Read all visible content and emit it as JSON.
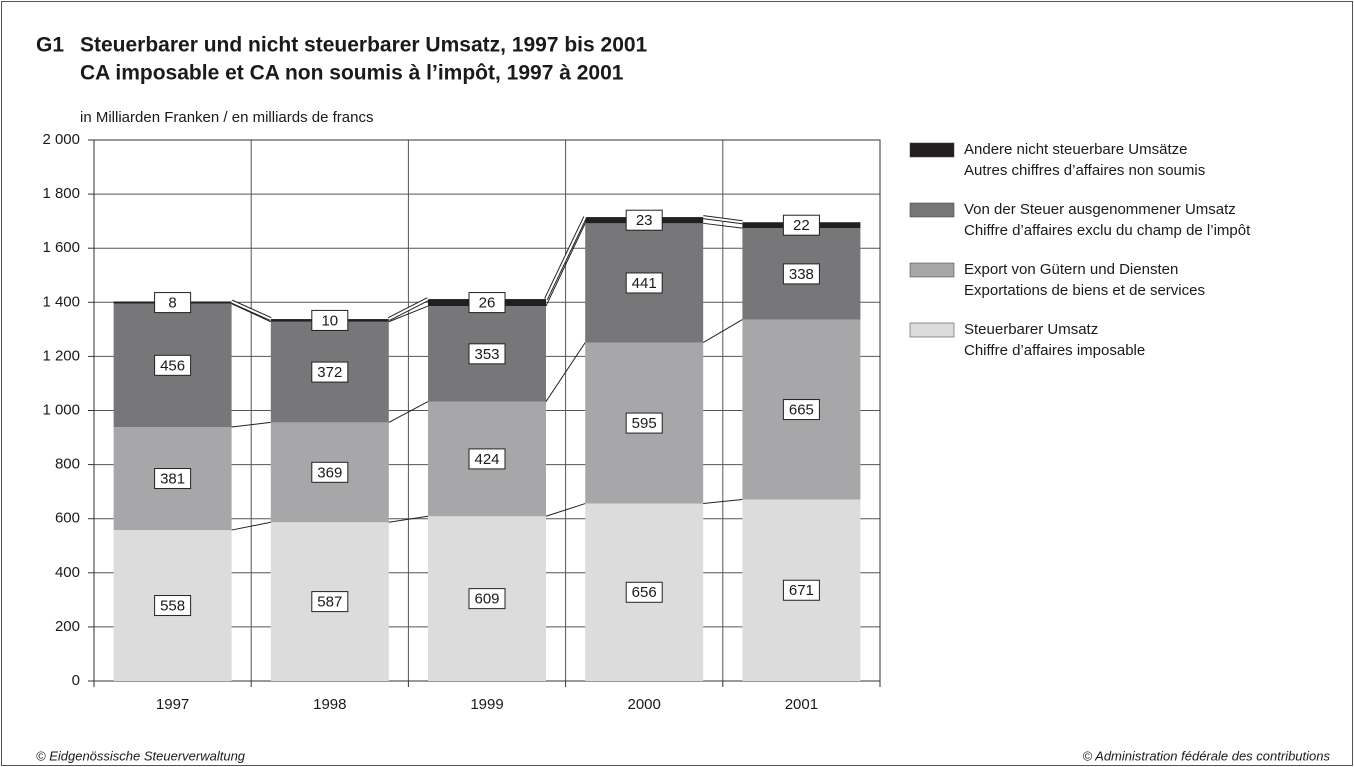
{
  "chart_data": {
    "type": "stacked_bar",
    "chart_id": "G1",
    "title": "Steuerbarer und nicht steuerbarer Umsatz, 1997 bis 2001",
    "title_fr": "CA imposable et CA non soumis à l’impôt, 1997 à 2001",
    "y_label": "in Milliarden Franken / en milliards de francs",
    "categories": [
      "1997",
      "1998",
      "1999",
      "2000",
      "2001"
    ],
    "series": [
      {
        "name": "Steuerbarer Umsatz",
        "name_fr": "Chiffre d’affaires imposable",
        "color": "#dcdcdd",
        "values": [
          558,
          587,
          609,
          656,
          671
        ]
      },
      {
        "name": "Export von Gütern und Diensten",
        "name_fr": "Exportations de biens et de services",
        "color": "#a7a7a9",
        "values": [
          381,
          369,
          424,
          595,
          665
        ]
      },
      {
        "name": "Von der Steuer ausgenommener Umsatz",
        "name_fr": "Chiffre d’affaires exclu du champ de l’impôt",
        "color": "#77777a",
        "values": [
          456,
          372,
          353,
          441,
          338
        ]
      },
      {
        "name": "Andere nicht steuerbare Umsätze",
        "name_fr": "Autres chiffres d’affaires non soumis",
        "color": "#231f20",
        "values": [
          8,
          10,
          26,
          23,
          22
        ]
      }
    ],
    "ylim": [
      0,
      2000
    ],
    "yticks": [
      0,
      200,
      400,
      600,
      800,
      {
        "value": 1000,
        "label": "1 000"
      },
      {
        "value": 1200,
        "label": "1 200"
      },
      {
        "value": 1400,
        "label": "1 400"
      },
      {
        "value": 1600,
        "label": "1 600"
      },
      {
        "value": 1800,
        "label": "1 800"
      },
      {
        "value": 2000,
        "label": "2 000"
      }
    ],
    "grid": true,
    "legend": "right",
    "source": "© Eidgenössische Steuerverwaltung",
    "source_fr": "© Administration fédérale des contributions"
  }
}
